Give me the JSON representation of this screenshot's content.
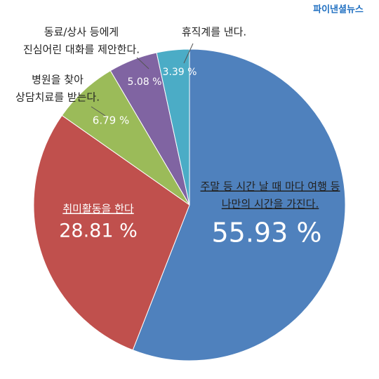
{
  "source": "파이낸셜뉴스",
  "chart_data": {
    "type": "pie",
    "categories": [
      [
        "주말 등 시간 날 때 마다 여행 등",
        "나만의 시간을 가진다."
      ],
      [
        "취미활동을 한다"
      ],
      [
        "병원을 찾아",
        "상담치료를 받는다."
      ],
      [
        "동료/상사 등에게",
        "진심어린 대화를 제안한다."
      ],
      [
        "휴직계를 낸다."
      ]
    ],
    "values": [
      55.93,
      28.81,
      6.79,
      5.08,
      3.39
    ],
    "value_labels": [
      "55.93 %",
      "28.81 %",
      "6.79 %",
      "5.08 %",
      "3.39 %"
    ],
    "colors": [
      "#4f81bd",
      "#c0504d",
      "#9bbb59",
      "#8064a2",
      "#4bacc6"
    ]
  }
}
